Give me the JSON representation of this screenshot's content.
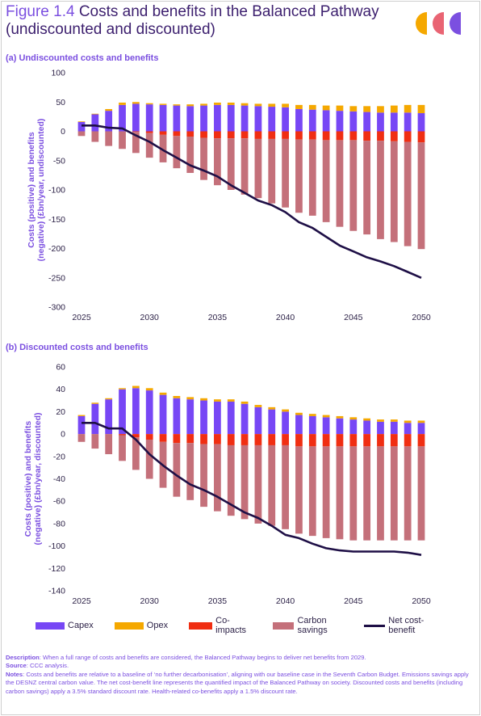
{
  "header": {
    "figure_label": "Figure 1.4",
    "title_line1": "Costs and benefits in the Balanced Pathway",
    "title_line2": "(undiscounted and discounted)"
  },
  "colors": {
    "capex": "#7747F5",
    "opex": "#F5A800",
    "co_impacts": "#F02E12",
    "carbon_savings": "#C4707A",
    "net": "#1E0F46",
    "title_accent": "#7B4FE0",
    "logo": [
      "#F5A800",
      "#E96473",
      "#7B4FE0"
    ]
  },
  "legend": {
    "items": [
      {
        "label": "Capex",
        "key": "capex",
        "style": "box"
      },
      {
        "label": "Opex",
        "key": "opex",
        "style": "box"
      },
      {
        "label": "Co-impacts",
        "key": "co_impacts",
        "style": "box"
      },
      {
        "label": "Carbon savings",
        "key": "carbon_savings",
        "style": "box"
      },
      {
        "label": "Net cost-benefit",
        "key": "net",
        "style": "line"
      }
    ]
  },
  "notes": {
    "description_label": "Description",
    "description_text": ": When a full range of costs and benefits are considered, the Balanced Pathway begins to deliver net benefits from 2029.",
    "source_label": "Source",
    "source_text": ": CCC analysis.",
    "notes_label": "Notes",
    "notes_text": ": Costs and benefits are relative to a baseline of ‘no further decarbonisation’, aligning with our baseline case in the Seventh Carbon Budget. Emissions savings apply the DESNZ central carbon value. The net cost-benefit line represents the quantified impact of the Balanced Pathway on society. Discounted costs and benefits (including carbon savings) apply a 3.5% standard discount rate. Health-related co-benefits apply a 1.5% discount rate."
  },
  "chart_data": [
    {
      "type": "bar",
      "stacked": true,
      "panel_title": "(a) Undiscounted costs and benefits",
      "ylabel": "Costs (positive) and benefits (negative) (£bn/year, undiscounted)",
      "ylim": [
        -300,
        100
      ],
      "yticks": [
        100,
        50,
        0,
        -50,
        -100,
        -150,
        -200,
        -250,
        -300
      ],
      "x": [
        2025,
        2026,
        2027,
        2028,
        2029,
        2030,
        2031,
        2032,
        2033,
        2034,
        2035,
        2036,
        2037,
        2038,
        2039,
        2040,
        2041,
        2042,
        2043,
        2044,
        2045,
        2046,
        2047,
        2048,
        2049,
        2050
      ],
      "xticks": [
        2025,
        2030,
        2035,
        2040,
        2045,
        2050
      ],
      "grid": false,
      "series": [
        {
          "name": "Capex",
          "key": "capex",
          "values": [
            16,
            29,
            35,
            45,
            47,
            46,
            45,
            44,
            43,
            44,
            45,
            45,
            44,
            43,
            42,
            41,
            38,
            37,
            36,
            35,
            34,
            33,
            32,
            32,
            32,
            31
          ]
        },
        {
          "name": "Opex",
          "key": "opex",
          "values": [
            1,
            1,
            3,
            4,
            3,
            2,
            2,
            2,
            3,
            3,
            4,
            4,
            4,
            4,
            5,
            6,
            7,
            8,
            8,
            9,
            9,
            10,
            11,
            12,
            13,
            14
          ]
        },
        {
          "name": "Co-impacts",
          "key": "co_impacts",
          "values": [
            0,
            0,
            0,
            0,
            -1,
            -3,
            -6,
            -8,
            -9,
            -11,
            -12,
            -12,
            -12,
            -13,
            -13,
            -13,
            -14,
            -14,
            -15,
            -15,
            -15,
            -16,
            -16,
            -17,
            -18,
            -19
          ]
        },
        {
          "name": "Carbon savings",
          "key": "carbon_savings",
          "values": [
            -8,
            -18,
            -25,
            -30,
            -36,
            -42,
            -47,
            -55,
            -62,
            -72,
            -80,
            -88,
            -96,
            -101,
            -110,
            -117,
            -125,
            -130,
            -140,
            -148,
            -155,
            -160,
            -168,
            -172,
            -178,
            -182
          ]
        },
        {
          "name": "Net cost-benefit",
          "key": "net",
          "type": "line",
          "values": [
            10,
            10,
            6,
            5,
            -7,
            -18,
            -32,
            -45,
            -58,
            -67,
            -77,
            -92,
            -105,
            -118,
            -126,
            -138,
            -155,
            -165,
            -180,
            -195,
            -205,
            -215,
            -222,
            -230,
            -240,
            -250
          ]
        }
      ]
    },
    {
      "type": "bar",
      "stacked": true,
      "panel_title": "(b) Discounted costs and benefits",
      "ylabel": "Costs (positive) and benefits (negative) (£bn/year, discounted)",
      "ylim": [
        -140,
        60
      ],
      "yticks": [
        60,
        40,
        20,
        0,
        -20,
        -40,
        -60,
        -80,
        -100,
        -120,
        -140
      ],
      "x": [
        2025,
        2026,
        2027,
        2028,
        2029,
        2030,
        2031,
        2032,
        2033,
        2034,
        2035,
        2036,
        2037,
        2038,
        2039,
        2040,
        2041,
        2042,
        2043,
        2044,
        2045,
        2046,
        2047,
        2048,
        2049,
        2050
      ],
      "xticks": [
        2025,
        2030,
        2035,
        2040,
        2045,
        2050
      ],
      "grid": false,
      "series": [
        {
          "name": "Capex",
          "key": "capex",
          "values": [
            16,
            27,
            31,
            40,
            41,
            39,
            35,
            32,
            31,
            30,
            29,
            29,
            27,
            24,
            22,
            20,
            17,
            16,
            15,
            14,
            13,
            12,
            11,
            11,
            10,
            10
          ]
        },
        {
          "name": "Opex",
          "key": "opex",
          "values": [
            1,
            1,
            1,
            1,
            2,
            2,
            2,
            2,
            2,
            2,
            2,
            2,
            2,
            2,
            2,
            2,
            2,
            2,
            2,
            2,
            2,
            2,
            2,
            2,
            2,
            2
          ]
        },
        {
          "name": "Co-impacts",
          "key": "co_impacts",
          "values": [
            0,
            0,
            0,
            -1,
            -3,
            -5,
            -7,
            -8,
            -8,
            -9,
            -9,
            -10,
            -10,
            -10,
            -10,
            -10,
            -11,
            -11,
            -11,
            -11,
            -11,
            -11,
            -11,
            -11,
            -11,
            -11
          ]
        },
        {
          "name": "Carbon savings",
          "key": "carbon_savings",
          "values": [
            -7,
            -13,
            -18,
            -23,
            -29,
            -35,
            -41,
            -48,
            -51,
            -56,
            -60,
            -63,
            -66,
            -70,
            -72,
            -75,
            -78,
            -80,
            -82,
            -83,
            -84,
            -84,
            -84,
            -84,
            -84,
            -84
          ]
        },
        {
          "name": "Net cost-benefit",
          "key": "net",
          "type": "line",
          "values": [
            10,
            10,
            5,
            5,
            -5,
            -18,
            -28,
            -37,
            -45,
            -50,
            -56,
            -63,
            -70,
            -75,
            -82,
            -90,
            -93,
            -98,
            -102,
            -104,
            -105,
            -105,
            -105,
            -105,
            -106,
            -108
          ]
        }
      ]
    }
  ]
}
